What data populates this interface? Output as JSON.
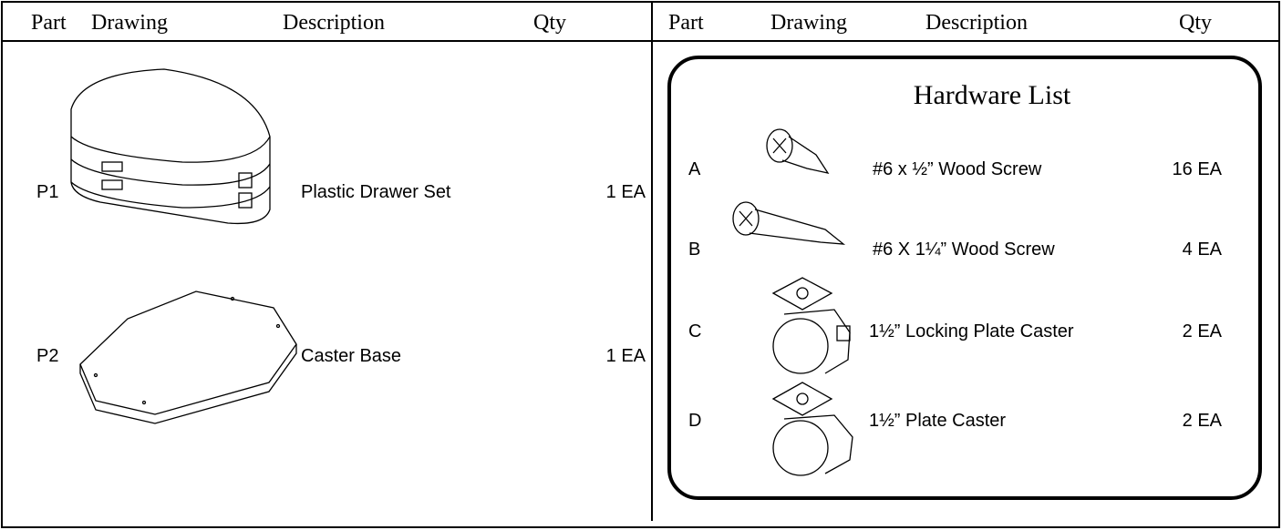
{
  "left": {
    "headers": [
      "Part",
      "Drawing",
      "Description",
      "Qty"
    ],
    "parts": [
      {
        "id": "P1",
        "description": "Plastic Drawer Set",
        "qty": "1 EA"
      },
      {
        "id": "P2",
        "description": "Caster Base",
        "qty": "1 EA"
      }
    ]
  },
  "right": {
    "headers": [
      "Part",
      "Drawing",
      "Description",
      "Qty"
    ],
    "title": "Hardware List",
    "items": [
      {
        "id": "A",
        "description": "#6 x ½” Wood Screw",
        "qty": "16 EA"
      },
      {
        "id": "B",
        "description": "#6 X 1¼” Wood Screw",
        "qty": "4 EA"
      },
      {
        "id": "C",
        "description": "1½” Locking Plate Caster",
        "qty": "2 EA"
      },
      {
        "id": "D",
        "description": "1½” Plate Caster",
        "qty": "2 EA"
      }
    ]
  }
}
